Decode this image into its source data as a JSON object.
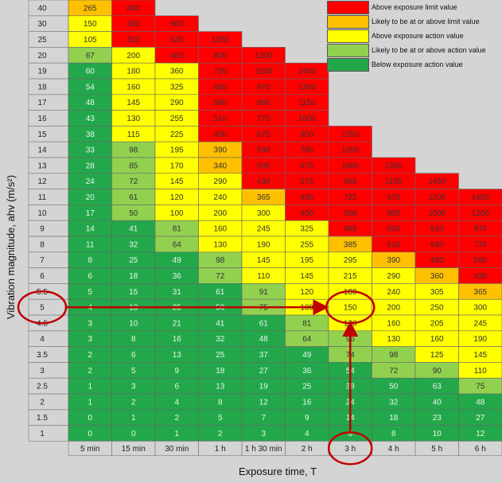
{
  "colors": {
    "dark_green": "#22a84a",
    "light_green": "#92d050",
    "yellow": "#ffff00",
    "orange": "#ffc000",
    "red": "#ff0000",
    "annotation": "#c00000"
  },
  "legend": [
    {
      "label": "Above exposure limit value",
      "color": "#ff0000"
    },
    {
      "label": "Likely to be at or above limit value",
      "color": "#ffc000"
    },
    {
      "label": "Above exposure action value",
      "color": "#ffff00"
    },
    {
      "label": "Likely to be at or above action value",
      "color": "#92d050"
    },
    {
      "label": "Below exposure action value",
      "color": "#22a84a"
    }
  ],
  "chart_data": {
    "type": "heatmap",
    "title": "",
    "xlabel": "Exposure time, T",
    "ylabel": "Vibration magnitude, a_hv (m/s²)",
    "ylabel_text": "Vibration magnitude,  ahv (m/s²)",
    "columns": [
      "5 min",
      "15 min",
      "30 min",
      "1 h",
      "1 h 30 min",
      "2 h",
      "3 h",
      "4 h",
      "5 h",
      "6 h"
    ],
    "rows": [
      {
        "label": "40",
        "values": [
          265,
          800,
          null,
          null,
          null,
          null,
          null,
          null,
          null,
          null
        ],
        "colors": [
          "O",
          "R",
          "",
          "",
          "",
          "",
          "",
          "",
          "",
          ""
        ]
      },
      {
        "label": "30",
        "values": [
          150,
          450,
          900,
          null,
          null,
          null,
          null,
          null,
          null,
          null
        ],
        "colors": [
          "Y",
          "R",
          "R",
          "",
          "",
          "",
          "",
          "",
          "",
          ""
        ]
      },
      {
        "label": "25",
        "values": [
          105,
          315,
          625,
          1250,
          null,
          null,
          null,
          null,
          null,
          null
        ],
        "colors": [
          "Y",
          "R",
          "R",
          "R",
          "",
          "",
          "",
          "",
          "",
          ""
        ]
      },
      {
        "label": "20",
        "values": [
          67,
          200,
          400,
          800,
          1200,
          null,
          null,
          null,
          null,
          null
        ],
        "colors": [
          "L",
          "Y",
          "R",
          "R",
          "R",
          "",
          "",
          "",
          "",
          ""
        ]
      },
      {
        "label": "19",
        "values": [
          60,
          180,
          360,
          720,
          1100,
          1450,
          null,
          null,
          null,
          null
        ],
        "colors": [
          "G",
          "Y",
          "Y",
          "R",
          "R",
          "R",
          "",
          "",
          "",
          ""
        ]
      },
      {
        "label": "18",
        "values": [
          54,
          160,
          325,
          650,
          970,
          1300,
          null,
          null,
          null,
          null
        ],
        "colors": [
          "G",
          "Y",
          "Y",
          "R",
          "R",
          "R",
          "",
          "",
          "",
          ""
        ]
      },
      {
        "label": "17",
        "values": [
          48,
          145,
          290,
          580,
          865,
          1150,
          null,
          null,
          null,
          null
        ],
        "colors": [
          "G",
          "Y",
          "Y",
          "R",
          "R",
          "R",
          "",
          "",
          "",
          ""
        ]
      },
      {
        "label": "16",
        "values": [
          43,
          130,
          255,
          510,
          770,
          1000,
          null,
          null,
          null,
          null
        ],
        "colors": [
          "G",
          "Y",
          "Y",
          "R",
          "R",
          "R",
          "",
          "",
          "",
          ""
        ]
      },
      {
        "label": "15",
        "values": [
          38,
          115,
          225,
          450,
          675,
          900,
          1350,
          null,
          null,
          null
        ],
        "colors": [
          "G",
          "Y",
          "Y",
          "R",
          "R",
          "R",
          "R",
          "",
          "",
          ""
        ]
      },
      {
        "label": "14",
        "values": [
          33,
          98,
          195,
          390,
          590,
          785,
          1200,
          null,
          null,
          null
        ],
        "colors": [
          "G",
          "L",
          "Y",
          "O",
          "R",
          "R",
          "R",
          "",
          "",
          ""
        ]
      },
      {
        "label": "13",
        "values": [
          28,
          85,
          170,
          340,
          505,
          675,
          1000,
          1350,
          null,
          null
        ],
        "colors": [
          "G",
          "L",
          "Y",
          "O",
          "R",
          "R",
          "R",
          "R",
          "",
          ""
        ]
      },
      {
        "label": "12",
        "values": [
          24,
          72,
          145,
          290,
          430,
          575,
          865,
          1150,
          1450,
          null
        ],
        "colors": [
          "G",
          "L",
          "Y",
          "Y",
          "R",
          "R",
          "R",
          "R",
          "R",
          ""
        ]
      },
      {
        "label": "11",
        "values": [
          20,
          61,
          120,
          240,
          365,
          485,
          725,
          970,
          1200,
          1450
        ],
        "colors": [
          "G",
          "L",
          "Y",
          "Y",
          "O",
          "R",
          "R",
          "R",
          "R",
          "R"
        ]
      },
      {
        "label": "10",
        "values": [
          17,
          50,
          100,
          200,
          300,
          400,
          600,
          800,
          1000,
          1200
        ],
        "colors": [
          "G",
          "L",
          "Y",
          "Y",
          "Y",
          "R",
          "R",
          "R",
          "R",
          "R"
        ]
      },
      {
        "label": "9",
        "values": [
          14,
          41,
          81,
          160,
          245,
          325,
          485,
          650,
          810,
          970
        ],
        "colors": [
          "G",
          "G",
          "L",
          "Y",
          "Y",
          "Y",
          "R",
          "R",
          "R",
          "R"
        ]
      },
      {
        "label": "8",
        "values": [
          11,
          32,
          64,
          130,
          190,
          255,
          385,
          510,
          640,
          770
        ],
        "colors": [
          "G",
          "G",
          "L",
          "Y",
          "Y",
          "Y",
          "O",
          "R",
          "R",
          "R"
        ]
      },
      {
        "label": "7",
        "values": [
          8,
          25,
          49,
          98,
          145,
          195,
          295,
          390,
          490,
          590
        ],
        "colors": [
          "G",
          "G",
          "G",
          "L",
          "Y",
          "Y",
          "Y",
          "O",
          "R",
          "R"
        ]
      },
      {
        "label": "6",
        "values": [
          6,
          18,
          36,
          72,
          110,
          145,
          215,
          290,
          360,
          430
        ],
        "colors": [
          "G",
          "G",
          "G",
          "L",
          "Y",
          "Y",
          "Y",
          "Y",
          "O",
          "R"
        ]
      },
      {
        "label": "5.5",
        "values": [
          5,
          15,
          31,
          61,
          91,
          120,
          180,
          240,
          305,
          365
        ],
        "colors": [
          "G",
          "G",
          "G",
          "G",
          "L",
          "Y",
          "Y",
          "Y",
          "Y",
          "O"
        ]
      },
      {
        "label": "5",
        "values": [
          4,
          13,
          25,
          50,
          75,
          100,
          150,
          200,
          250,
          300
        ],
        "colors": [
          "G",
          "G",
          "G",
          "G",
          "L",
          "Y",
          "Y",
          "Y",
          "Y",
          "Y"
        ]
      },
      {
        "label": "4.5",
        "values": [
          3,
          10,
          21,
          41,
          61,
          81,
          120,
          160,
          205,
          245
        ],
        "colors": [
          "G",
          "G",
          "G",
          "G",
          "G",
          "L",
          "Y",
          "Y",
          "Y",
          "Y"
        ]
      },
      {
        "label": "4",
        "values": [
          3,
          8,
          16,
          32,
          48,
          64,
          96,
          130,
          160,
          190
        ],
        "colors": [
          "G",
          "G",
          "G",
          "G",
          "G",
          "L",
          "L",
          "Y",
          "Y",
          "Y"
        ]
      },
      {
        "label": "3.5",
        "values": [
          2,
          6,
          13,
          25,
          37,
          49,
          74,
          98,
          125,
          145
        ],
        "colors": [
          "G",
          "G",
          "G",
          "G",
          "G",
          "G",
          "L",
          "L",
          "Y",
          "Y"
        ]
      },
      {
        "label": "3",
        "values": [
          2,
          5,
          9,
          18,
          27,
          36,
          54,
          72,
          90,
          110
        ],
        "colors": [
          "G",
          "G",
          "G",
          "G",
          "G",
          "G",
          "G",
          "L",
          "L",
          "Y"
        ]
      },
      {
        "label": "2.5",
        "values": [
          1,
          3,
          6,
          13,
          19,
          25,
          38,
          50,
          63,
          75
        ],
        "colors": [
          "G",
          "G",
          "G",
          "G",
          "G",
          "G",
          "G",
          "G",
          "G",
          "L"
        ]
      },
      {
        "label": "2",
        "values": [
          1,
          2,
          4,
          8,
          12,
          16,
          24,
          32,
          40,
          48
        ],
        "colors": [
          "G",
          "G",
          "G",
          "G",
          "G",
          "G",
          "G",
          "G",
          "G",
          "G"
        ]
      },
      {
        "label": "1.5",
        "values": [
          0,
          1,
          2,
          5,
          7,
          9,
          14,
          18,
          23,
          27
        ],
        "colors": [
          "G",
          "G",
          "G",
          "G",
          "G",
          "G",
          "G",
          "G",
          "G",
          "G"
        ]
      },
      {
        "label": "1",
        "values": [
          0,
          0,
          1,
          2,
          3,
          4,
          6,
          8,
          10,
          12
        ],
        "colors": [
          "G",
          "G",
          "G",
          "G",
          "G",
          "G",
          "G",
          "G",
          "G",
          "G"
        ]
      }
    ],
    "annotation": {
      "highlight_row": "5",
      "highlight_column": "3 h",
      "highlight_value": 150
    }
  }
}
